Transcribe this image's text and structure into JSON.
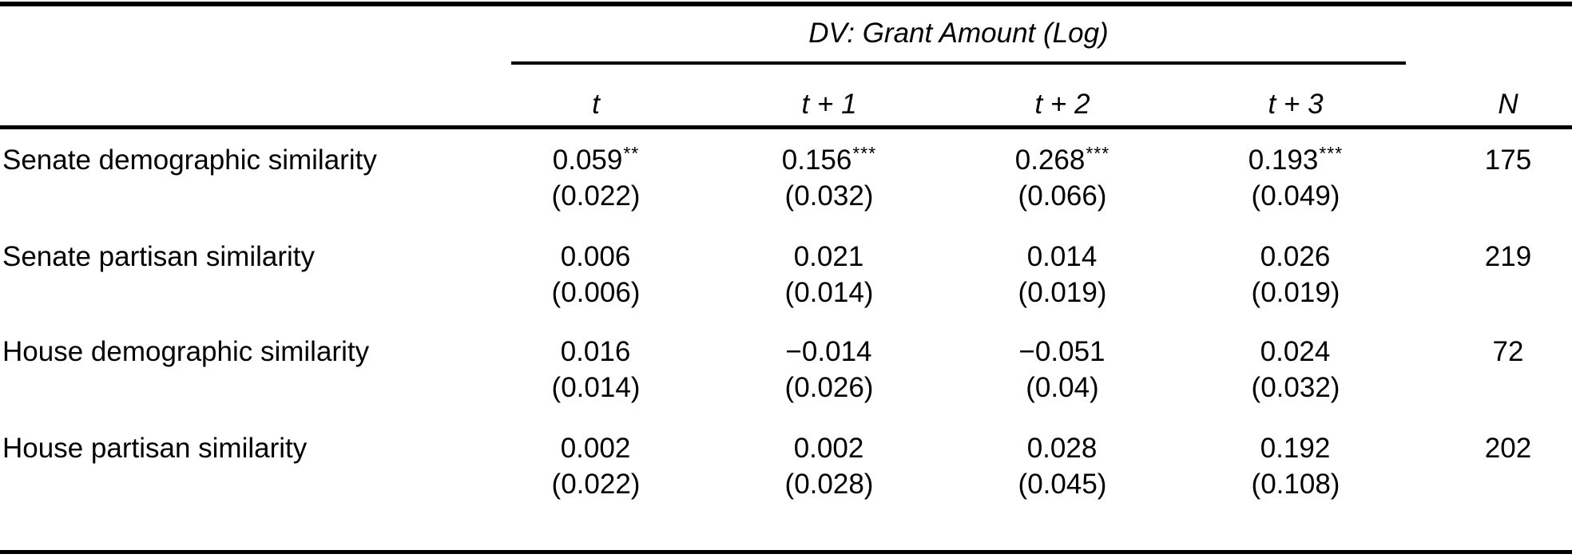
{
  "table": {
    "spanner_title": "DV: Grant Amount (Log)",
    "column_headers": {
      "t0": "t",
      "t1": "t + 1",
      "t2": "t + 2",
      "t3": "t + 3",
      "n": "N"
    },
    "rows": [
      {
        "label": "Senate demographic similarity",
        "cells": [
          {
            "coef": "0.059",
            "stars": "**",
            "se": "(0.022)"
          },
          {
            "coef": "0.156",
            "stars": "***",
            "se": "(0.032)"
          },
          {
            "coef": "0.268",
            "stars": "***",
            "se": "(0.066)"
          },
          {
            "coef": "0.193",
            "stars": "***",
            "se": "(0.049)"
          }
        ],
        "n": "175"
      },
      {
        "label": "Senate partisan similarity",
        "cells": [
          {
            "coef": "0.006",
            "stars": "",
            "se": "(0.006)"
          },
          {
            "coef": "0.021",
            "stars": "",
            "se": "(0.014)"
          },
          {
            "coef": "0.014",
            "stars": "",
            "se": "(0.019)"
          },
          {
            "coef": "0.026",
            "stars": "",
            "se": "(0.019)"
          }
        ],
        "n": "219"
      },
      {
        "label": "House demographic similarity",
        "cells": [
          {
            "coef": "0.016",
            "stars": "",
            "se": "(0.014)"
          },
          {
            "coef": "−0.014",
            "stars": "",
            "se": "(0.026)"
          },
          {
            "coef": "−0.051",
            "stars": "",
            "se": "(0.04)"
          },
          {
            "coef": "0.024",
            "stars": "",
            "se": "(0.032)"
          }
        ],
        "n": "72"
      },
      {
        "label": "House partisan similarity",
        "cells": [
          {
            "coef": "0.002",
            "stars": "",
            "se": "(0.022)"
          },
          {
            "coef": "0.002",
            "stars": "",
            "se": "(0.028)"
          },
          {
            "coef": "0.028",
            "stars": "",
            "se": "(0.045)"
          },
          {
            "coef": "0.192",
            "stars": "",
            "se": "(0.108)"
          }
        ],
        "n": "202"
      }
    ],
    "colors": {
      "text": "#000000",
      "background": "#ffffff",
      "rule": "#000000"
    }
  }
}
